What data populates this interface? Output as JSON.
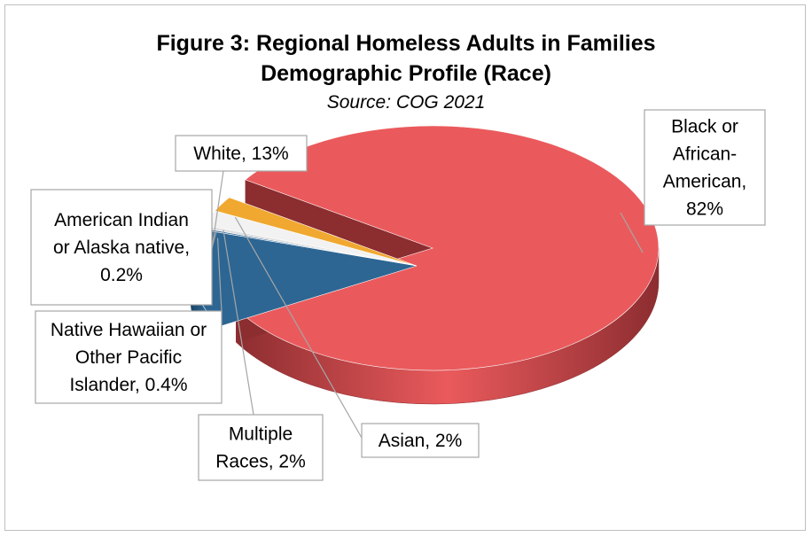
{
  "chart_data": {
    "type": "pie",
    "title_line1": "Figure 3: Regional Homeless Adults in Families",
    "title_line2": "Demographic Profile (Race)",
    "subtitle": "Source: COG 2021",
    "slices": [
      {
        "name": "Black or African-American",
        "value": 82,
        "label_lines": [
          "Black or",
          "African-",
          "American,",
          "82%"
        ],
        "color": "#ea5a5c",
        "side": "#8c2d30"
      },
      {
        "name": "White",
        "value": 13,
        "label_lines": [
          "White, 13%"
        ],
        "color": "#2d6693",
        "side": "#1a4566"
      },
      {
        "name": "American Indian or Alaska native",
        "value": 0.2,
        "label_lines": [
          "American Indian",
          "or Alaska native,",
          "0.2%"
        ],
        "color": "#3a6f9c",
        "side": "#22445f"
      },
      {
        "name": "Native Hawaiian or Other Pacific Islander",
        "value": 0.4,
        "label_lines": [
          "Native Hawaiian or",
          "Other Pacific",
          "Islander, 0.4%"
        ],
        "color": "#e0e0e0",
        "side": "#a8a8a8"
      },
      {
        "name": "Multiple Races",
        "value": 2,
        "label_lines": [
          "Multiple",
          "Races, 2%"
        ],
        "color": "#f2f2f2",
        "side": "#c8c8c8"
      },
      {
        "name": "Asian",
        "value": 2,
        "label_lines": [
          "Asian, 2%"
        ],
        "color": "#f0a830",
        "side": "#8a5a12"
      }
    ]
  }
}
